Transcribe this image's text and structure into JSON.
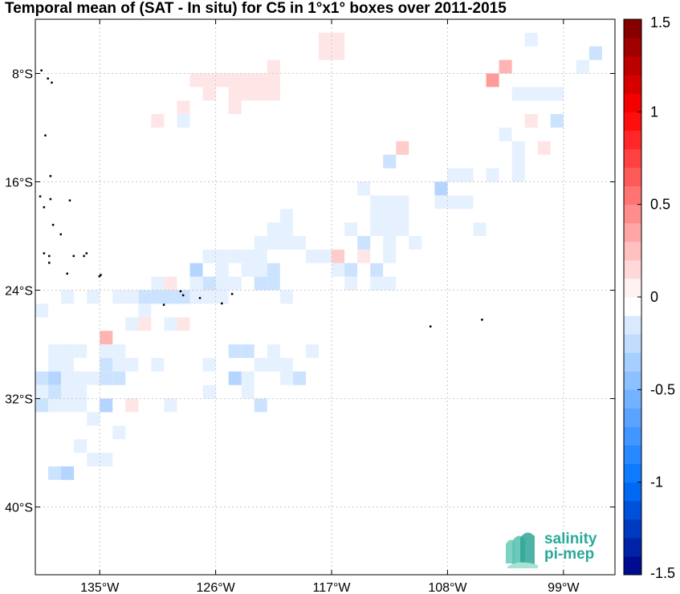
{
  "chart_data": {
    "type": "heatmap",
    "title": "Temporal mean of (SAT - In situ) for C5 in 1°x1° boxes over 2011-2015",
    "lon_range": [
      -140,
      -95
    ],
    "lat_range": [
      -45,
      -4
    ],
    "x_ticks": [
      {
        "value": -135,
        "label": "135°W"
      },
      {
        "value": -126,
        "label": "126°W"
      },
      {
        "value": -117,
        "label": "117°W"
      },
      {
        "value": -108,
        "label": "108°W"
      },
      {
        "value": -99,
        "label": "99°W"
      }
    ],
    "y_ticks": [
      {
        "value": -8,
        "label": "8°S"
      },
      {
        "value": -16,
        "label": "16°S"
      },
      {
        "value": -24,
        "label": "24°S"
      },
      {
        "value": -32,
        "label": "32°S"
      },
      {
        "value": -40,
        "label": "40°S"
      }
    ],
    "grid": true,
    "colorbar": {
      "range": [
        -1.5,
        1.5
      ],
      "step": 0.1,
      "ticks": [
        {
          "value": 1.5,
          "label": "1.5"
        },
        {
          "value": 1,
          "label": "1"
        },
        {
          "value": 0.5,
          "label": "0.5"
        },
        {
          "value": 0,
          "label": "0"
        },
        {
          "value": -0.5,
          "label": "-0.5"
        },
        {
          "value": -1,
          "label": "-1"
        },
        {
          "value": -1.5,
          "label": "-1.5"
        }
      ],
      "position": "right"
    },
    "cells": [
      {
        "lon": -117.5,
        "lat": -5.5,
        "value": 0.1
      },
      {
        "lon": -117.5,
        "lat": -6.5,
        "value": 0.1
      },
      {
        "lon": -116.5,
        "lat": -5.5,
        "value": 0.1
      },
      {
        "lon": -116.5,
        "lat": -6.5,
        "value": 0.1
      },
      {
        "lon": -101.5,
        "lat": -5.5,
        "value": -0.1
      },
      {
        "lon": -96.5,
        "lat": -6.5,
        "value": -0.2
      },
      {
        "lon": -97.5,
        "lat": -7.5,
        "value": -0.1
      },
      {
        "lon": -103.5,
        "lat": -7.5,
        "value": 0.3
      },
      {
        "lon": -104.5,
        "lat": -8.5,
        "value": 0.4
      },
      {
        "lon": -121.5,
        "lat": -7.5,
        "value": 0.1
      },
      {
        "lon": -121.5,
        "lat": -8.5,
        "value": 0.1
      },
      {
        "lon": -122.5,
        "lat": -8.5,
        "value": 0.1
      },
      {
        "lon": -123.5,
        "lat": -8.5,
        "value": 0.1
      },
      {
        "lon": -124.5,
        "lat": -8.5,
        "value": 0.1
      },
      {
        "lon": -125.5,
        "lat": -8.5,
        "value": 0.1
      },
      {
        "lon": -126.5,
        "lat": -8.5,
        "value": 0.1
      },
      {
        "lon": -127.5,
        "lat": -8.5,
        "value": 0.1
      },
      {
        "lon": -121.5,
        "lat": -9.5,
        "value": 0.1
      },
      {
        "lon": -122.5,
        "lat": -9.5,
        "value": 0.1
      },
      {
        "lon": -123.5,
        "lat": -9.5,
        "value": 0.1
      },
      {
        "lon": -124.5,
        "lat": -9.5,
        "value": 0.1
      },
      {
        "lon": -126.5,
        "lat": -9.5,
        "value": 0.1
      },
      {
        "lon": -124.5,
        "lat": -10.5,
        "value": 0.1
      },
      {
        "lon": -128.5,
        "lat": -10.5,
        "value": 0.1
      },
      {
        "lon": -130.5,
        "lat": -11.5,
        "value": 0.1
      },
      {
        "lon": -128.5,
        "lat": -11.5,
        "value": -0.1
      },
      {
        "lon": -100.5,
        "lat": -9.5,
        "value": -0.1
      },
      {
        "lon": -101.5,
        "lat": -9.5,
        "value": -0.1
      },
      {
        "lon": -102.5,
        "lat": -9.5,
        "value": -0.1
      },
      {
        "lon": -99.5,
        "lat": -9.5,
        "value": -0.1
      },
      {
        "lon": -101.5,
        "lat": -11.5,
        "value": 0.1
      },
      {
        "lon": -99.5,
        "lat": -11.5,
        "value": -0.2
      },
      {
        "lon": -103.5,
        "lat": -12.5,
        "value": -0.1
      },
      {
        "lon": -102.5,
        "lat": -13.5,
        "value": -0.1
      },
      {
        "lon": -102.5,
        "lat": -14.5,
        "value": -0.1
      },
      {
        "lon": -102.5,
        "lat": -15.5,
        "value": -0.1
      },
      {
        "lon": -100.5,
        "lat": -13.5,
        "value": 0.1
      },
      {
        "lon": -104.5,
        "lat": -15.5,
        "value": -0.1
      },
      {
        "lon": -107.5,
        "lat": -15.5,
        "value": -0.1
      },
      {
        "lon": -106.5,
        "lat": -15.5,
        "value": -0.1
      },
      {
        "lon": -108.5,
        "lat": -16.5,
        "value": -0.3
      },
      {
        "lon": -107.5,
        "lat": -17.5,
        "value": -0.1
      },
      {
        "lon": -106.5,
        "lat": -17.5,
        "value": -0.1
      },
      {
        "lon": -108.5,
        "lat": -17.5,
        "value": -0.1
      },
      {
        "lon": -105.5,
        "lat": -19.5,
        "value": -0.1
      },
      {
        "lon": -111.5,
        "lat": -13.5,
        "value": 0.2
      },
      {
        "lon": -112.5,
        "lat": -14.5,
        "value": -0.2
      },
      {
        "lon": -114.5,
        "lat": -16.5,
        "value": -0.1
      },
      {
        "lon": -112.5,
        "lat": -17.5,
        "value": -0.1
      },
      {
        "lon": -111.5,
        "lat": -17.5,
        "value": -0.1
      },
      {
        "lon": -113.5,
        "lat": -17.5,
        "value": -0.1
      },
      {
        "lon": -112.5,
        "lat": -18.5,
        "value": -0.1
      },
      {
        "lon": -111.5,
        "lat": -18.5,
        "value": -0.1
      },
      {
        "lon": -113.5,
        "lat": -18.5,
        "value": -0.1
      },
      {
        "lon": -112.5,
        "lat": -19.5,
        "value": -0.1
      },
      {
        "lon": -111.5,
        "lat": -19.5,
        "value": -0.1
      },
      {
        "lon": -113.5,
        "lat": -19.5,
        "value": -0.1
      },
      {
        "lon": -115.5,
        "lat": -19.5,
        "value": -0.1
      },
      {
        "lon": -112.5,
        "lat": -20.5,
        "value": -0.1
      },
      {
        "lon": -110.5,
        "lat": -20.5,
        "value": -0.1
      },
      {
        "lon": -114.5,
        "lat": -20.5,
        "value": -0.2
      },
      {
        "lon": -112.5,
        "lat": -21.5,
        "value": -0.1
      },
      {
        "lon": -114.5,
        "lat": -21.5,
        "value": 0.1
      },
      {
        "lon": -113.5,
        "lat": -22.5,
        "value": -0.2
      },
      {
        "lon": -113.5,
        "lat": -23.5,
        "value": -0.1
      },
      {
        "lon": -116.5,
        "lat": -21.5,
        "value": 0.2
      },
      {
        "lon": -117.5,
        "lat": -21.5,
        "value": -0.1
      },
      {
        "lon": -116.5,
        "lat": -22.5,
        "value": -0.1
      },
      {
        "lon": -115.5,
        "lat": -22.5,
        "value": -0.2
      },
      {
        "lon": -115.5,
        "lat": -23.5,
        "value": -0.1
      },
      {
        "lon": -112.5,
        "lat": -23.5,
        "value": -0.1
      },
      {
        "lon": -118.5,
        "lat": -21.5,
        "value": -0.1
      },
      {
        "lon": -120.5,
        "lat": -18.5,
        "value": -0.1
      },
      {
        "lon": -120.5,
        "lat": -19.5,
        "value": -0.1
      },
      {
        "lon": -121.5,
        "lat": -19.5,
        "value": -0.1
      },
      {
        "lon": -120.5,
        "lat": -20.5,
        "value": -0.1
      },
      {
        "lon": -121.5,
        "lat": -20.5,
        "value": -0.1
      },
      {
        "lon": -122.5,
        "lat": -20.5,
        "value": -0.1
      },
      {
        "lon": -119.5,
        "lat": -20.5,
        "value": -0.1
      },
      {
        "lon": -122.5,
        "lat": -21.5,
        "value": -0.1
      },
      {
        "lon": -123.5,
        "lat": -21.5,
        "value": -0.1
      },
      {
        "lon": -124.5,
        "lat": -21.5,
        "value": -0.1
      },
      {
        "lon": -125.5,
        "lat": -21.5,
        "value": -0.1
      },
      {
        "lon": -126.5,
        "lat": -21.5,
        "value": -0.1
      },
      {
        "lon": -121.5,
        "lat": -22.5,
        "value": -0.2
      },
      {
        "lon": -122.5,
        "lat": -22.5,
        "value": -0.1
      },
      {
        "lon": -123.5,
        "lat": -22.5,
        "value": -0.1
      },
      {
        "lon": -125.5,
        "lat": -22.5,
        "value": -0.1
      },
      {
        "lon": -127.5,
        "lat": -22.5,
        "value": -0.3
      },
      {
        "lon": -121.5,
        "lat": -23.5,
        "value": -0.2
      },
      {
        "lon": -122.5,
        "lat": -23.5,
        "value": -0.2
      },
      {
        "lon": -124.5,
        "lat": -23.5,
        "value": -0.1
      },
      {
        "lon": -125.5,
        "lat": -23.5,
        "value": -0.1
      },
      {
        "lon": -126.5,
        "lat": -23.5,
        "value": -0.2
      },
      {
        "lon": -127.5,
        "lat": -23.5,
        "value": -0.1
      },
      {
        "lon": -128.5,
        "lat": -24.5,
        "value": -0.2
      },
      {
        "lon": -130.5,
        "lat": -23.5,
        "value": -0.1
      },
      {
        "lon": -129.5,
        "lat": -23.5,
        "value": 0.1
      },
      {
        "lon": -131.5,
        "lat": -24.5,
        "value": -0.2
      },
      {
        "lon": -120.5,
        "lat": -24.5,
        "value": -0.1
      },
      {
        "lon": -125.5,
        "lat": -24.5,
        "value": -0.1
      },
      {
        "lon": -126.5,
        "lat": -24.5,
        "value": -0.1
      },
      {
        "lon": -127.5,
        "lat": -24.5,
        "value": -0.1
      },
      {
        "lon": -129.5,
        "lat": -24.5,
        "value": -0.2
      },
      {
        "lon": -130.5,
        "lat": -24.5,
        "value": -0.2
      },
      {
        "lon": -132.5,
        "lat": -24.5,
        "value": -0.1
      },
      {
        "lon": -131.5,
        "lat": -25.5,
        "value": -0.1
      },
      {
        "lon": -128.5,
        "lat": -26.5,
        "value": 0.1
      },
      {
        "lon": -129.5,
        "lat": -26.5,
        "value": -0.1
      },
      {
        "lon": -131.5,
        "lat": -26.5,
        "value": 0.1
      },
      {
        "lon": -132.5,
        "lat": -26.5,
        "value": -0.1
      },
      {
        "lon": -135.5,
        "lat": -24.5,
        "value": -0.1
      },
      {
        "lon": -133.5,
        "lat": -24.5,
        "value": -0.1
      },
      {
        "lon": -137.5,
        "lat": -24.5,
        "value": -0.1
      },
      {
        "lon": -139.5,
        "lat": -25.5,
        "value": -0.1
      },
      {
        "lon": -134.5,
        "lat": -27.5,
        "value": 0.3
      },
      {
        "lon": -134.5,
        "lat": -28.5,
        "value": -0.1
      },
      {
        "lon": -133.5,
        "lat": -28.5,
        "value": -0.1
      },
      {
        "lon": -138.5,
        "lat": -28.5,
        "value": -0.1
      },
      {
        "lon": -137.5,
        "lat": -28.5,
        "value": -0.1
      },
      {
        "lon": -136.5,
        "lat": -28.5,
        "value": -0.1
      },
      {
        "lon": -138.5,
        "lat": -29.5,
        "value": -0.1
      },
      {
        "lon": -137.5,
        "lat": -29.5,
        "value": -0.1
      },
      {
        "lon": -134.5,
        "lat": -29.5,
        "value": -0.2
      },
      {
        "lon": -133.5,
        "lat": -29.5,
        "value": -0.1
      },
      {
        "lon": -132.5,
        "lat": -29.5,
        "value": -0.1
      },
      {
        "lon": -139.5,
        "lat": -30.5,
        "value": -0.2
      },
      {
        "lon": -138.5,
        "lat": -30.5,
        "value": -0.3
      },
      {
        "lon": -137.5,
        "lat": -30.5,
        "value": -0.1
      },
      {
        "lon": -136.5,
        "lat": -30.5,
        "value": -0.1
      },
      {
        "lon": -135.5,
        "lat": -30.5,
        "value": -0.1
      },
      {
        "lon": -134.5,
        "lat": -30.5,
        "value": -0.2
      },
      {
        "lon": -133.5,
        "lat": -30.5,
        "value": -0.2
      },
      {
        "lon": -139.5,
        "lat": -31.5,
        "value": -0.1
      },
      {
        "lon": -138.5,
        "lat": -31.5,
        "value": -0.2
      },
      {
        "lon": -137.5,
        "lat": -31.5,
        "value": -0.1
      },
      {
        "lon": -136.5,
        "lat": -31.5,
        "value": -0.1
      },
      {
        "lon": -139.5,
        "lat": -32.5,
        "value": -0.2
      },
      {
        "lon": -138.5,
        "lat": -32.5,
        "value": -0.1
      },
      {
        "lon": -137.5,
        "lat": -32.5,
        "value": -0.1
      },
      {
        "lon": -136.5,
        "lat": -32.5,
        "value": -0.1
      },
      {
        "lon": -134.5,
        "lat": -32.5,
        "value": -0.3
      },
      {
        "lon": -132.5,
        "lat": -32.5,
        "value": 0.1
      },
      {
        "lon": -135.5,
        "lat": -33.5,
        "value": -0.1
      },
      {
        "lon": -130.5,
        "lat": -29.5,
        "value": -0.1
      },
      {
        "lon": -126.5,
        "lat": -29.5,
        "value": -0.1
      },
      {
        "lon": -123.5,
        "lat": -28.5,
        "value": -0.2
      },
      {
        "lon": -124.5,
        "lat": -28.5,
        "value": -0.2
      },
      {
        "lon": -121.5,
        "lat": -28.5,
        "value": -0.1
      },
      {
        "lon": -121.5,
        "lat": -29.5,
        "value": -0.1
      },
      {
        "lon": -122.5,
        "lat": -29.5,
        "value": -0.1
      },
      {
        "lon": -120.5,
        "lat": -29.5,
        "value": -0.1
      },
      {
        "lon": -119.5,
        "lat": -30.5,
        "value": -0.2
      },
      {
        "lon": -118.5,
        "lat": -28.5,
        "value": -0.1
      },
      {
        "lon": -123.5,
        "lat": -30.5,
        "value": -0.1
      },
      {
        "lon": -124.5,
        "lat": -30.5,
        "value": -0.3
      },
      {
        "lon": -120.5,
        "lat": -30.5,
        "value": -0.1
      },
      {
        "lon": -123.5,
        "lat": -31.5,
        "value": -0.1
      },
      {
        "lon": -126.5,
        "lat": -31.5,
        "value": -0.1
      },
      {
        "lon": -129.5,
        "lat": -32.5,
        "value": -0.1
      },
      {
        "lon": -122.5,
        "lat": -32.5,
        "value": -0.2
      },
      {
        "lon": -133.5,
        "lat": -34.5,
        "value": -0.1
      },
      {
        "lon": -136.5,
        "lat": -35.5,
        "value": -0.1
      },
      {
        "lon": -134.5,
        "lat": -36.5,
        "value": -0.1
      },
      {
        "lon": -138.5,
        "lat": -37.5,
        "value": -0.2
      },
      {
        "lon": -137.5,
        "lat": -37.5,
        "value": -0.3
      },
      {
        "lon": -135.5,
        "lat": -36.5,
        "value": -0.1
      }
    ],
    "land_mask_note": ""
  },
  "logo": {
    "line1": "salinity",
    "line2": "pi-mep"
  },
  "colors": {
    "grid": "#c8c8c8",
    "land": "#000000",
    "logo_text": "#29a99a",
    "logo_wave": "#5cc4b2"
  }
}
